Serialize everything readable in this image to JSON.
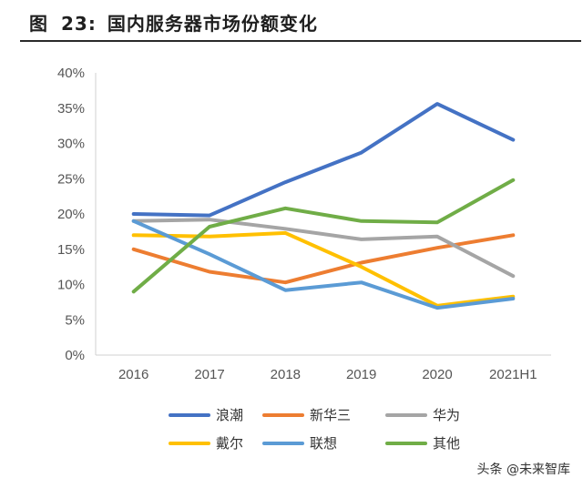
{
  "figure": {
    "label": "图",
    "number": "23:",
    "title": "国内服务器市场份额变化"
  },
  "watermark": "头条 @未来智库",
  "chart_data": {
    "type": "line",
    "categories": [
      "2016",
      "2017",
      "2018",
      "2019",
      "2020",
      "2021H1"
    ],
    "y_ticks": [
      "0%",
      "5%",
      "10%",
      "15%",
      "20%",
      "25%",
      "30%",
      "35%",
      "40%"
    ],
    "ylim": [
      0,
      40
    ],
    "grid": false,
    "legend_position": "bottom",
    "series": [
      {
        "name": "浪潮",
        "color": "#4472C4",
        "values": [
          20.0,
          19.8,
          24.5,
          28.7,
          35.6,
          30.5
        ]
      },
      {
        "name": "新华三",
        "color": "#ED7D31",
        "values": [
          15.0,
          11.8,
          10.3,
          13.1,
          15.2,
          17.0
        ]
      },
      {
        "name": "华为",
        "color": "#A5A5A5",
        "values": [
          19.0,
          19.2,
          17.9,
          16.4,
          16.8,
          11.2
        ]
      },
      {
        "name": "戴尔",
        "color": "#FFC000",
        "values": [
          17.0,
          16.8,
          17.3,
          12.5,
          7.0,
          8.3
        ]
      },
      {
        "name": "联想",
        "color": "#5B9BD5",
        "values": [
          19.0,
          14.3,
          9.2,
          10.3,
          6.7,
          8.0
        ]
      },
      {
        "name": "其他",
        "color": "#70AD47",
        "values": [
          9.0,
          18.2,
          20.8,
          19.0,
          18.8,
          24.8
        ]
      }
    ]
  }
}
